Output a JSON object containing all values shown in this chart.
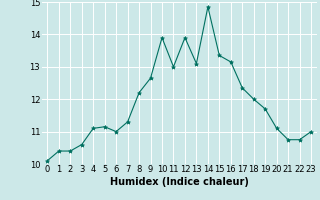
{
  "x": [
    0,
    1,
    2,
    3,
    4,
    5,
    6,
    7,
    8,
    9,
    10,
    11,
    12,
    13,
    14,
    15,
    16,
    17,
    18,
    19,
    20,
    21,
    22,
    23
  ],
  "y": [
    10.1,
    10.4,
    10.4,
    10.6,
    11.1,
    11.15,
    11.0,
    11.3,
    12.2,
    12.65,
    13.9,
    13.0,
    13.9,
    13.1,
    14.85,
    13.35,
    13.15,
    12.35,
    12.0,
    11.7,
    11.1,
    10.75,
    10.75,
    11.0
  ],
  "xlim": [
    -0.5,
    23.5
  ],
  "ylim": [
    10,
    15
  ],
  "yticks": [
    10,
    11,
    12,
    13,
    14,
    15
  ],
  "xticks": [
    0,
    1,
    2,
    3,
    4,
    5,
    6,
    7,
    8,
    9,
    10,
    11,
    12,
    13,
    14,
    15,
    16,
    17,
    18,
    19,
    20,
    21,
    22,
    23
  ],
  "xlabel": "Humidex (Indice chaleur)",
  "line_color": "#007060",
  "marker": "*",
  "marker_size": 3,
  "bg_color": "#cce8e8",
  "grid_color": "#ffffff",
  "xlabel_fontsize": 7,
  "tick_fontsize": 6
}
